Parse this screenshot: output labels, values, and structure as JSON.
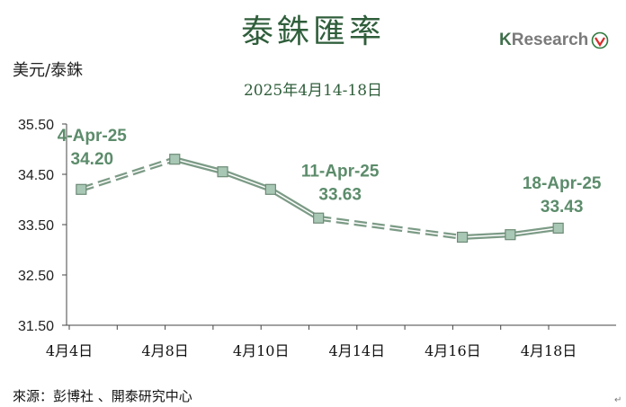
{
  "title": "泰銖匯率",
  "subtitle": "2025年4月14-18日",
  "unit_label": "美元/泰銖",
  "source": "來源：彭博社 、開泰研究中心",
  "logo": {
    "k": "K",
    "text": "Research"
  },
  "colors": {
    "line": "#7c9b86",
    "marker_fill": "#a8c7b4",
    "marker_stroke": "#6d8a76",
    "text_green": "#2f5e3b",
    "annotation": "#5c8c6b"
  },
  "chart_data": {
    "type": "line",
    "title": "泰銖匯率",
    "subtitle": "2025年4月14-18日",
    "ylabel": "美元/泰銖",
    "ylim": [
      31.5,
      35.5
    ],
    "yticks": [
      "31.50",
      "32.50",
      "33.50",
      "34.50",
      "35.50"
    ],
    "xlim_index": [
      0,
      10.7
    ],
    "xticks": [
      {
        "label": "4月4日",
        "index": 0
      },
      {
        "label": "4月8日",
        "index": 2
      },
      {
        "label": "4月10日",
        "index": 4
      },
      {
        "label": "4月14日",
        "index": 6
      },
      {
        "label": "4月16日",
        "index": 8
      },
      {
        "label": "4月18日",
        "index": 10
      }
    ],
    "points": [
      {
        "index": 0.25,
        "value": 34.2
      },
      {
        "index": 2.2,
        "value": 34.8
      },
      {
        "index": 3.2,
        "value": 34.55
      },
      {
        "index": 4.2,
        "value": 34.2
      },
      {
        "index": 5.2,
        "value": 33.63
      },
      {
        "index": 8.2,
        "value": 33.25
      },
      {
        "index": 9.2,
        "value": 33.3
      },
      {
        "index": 10.2,
        "value": 33.43
      }
    ],
    "segments": [
      {
        "from": 0,
        "to": 1,
        "style": "dashed"
      },
      {
        "from": 1,
        "to": 2,
        "style": "solid"
      },
      {
        "from": 2,
        "to": 3,
        "style": "solid"
      },
      {
        "from": 3,
        "to": 4,
        "style": "solid"
      },
      {
        "from": 4,
        "to": 5,
        "style": "dashed"
      },
      {
        "from": 5,
        "to": 6,
        "style": "solid"
      },
      {
        "from": 6,
        "to": 7,
        "style": "solid"
      }
    ],
    "annotations": [
      {
        "point": 0,
        "date": "4-Apr-25",
        "value": "34.20"
      },
      {
        "point": 4,
        "date": "11-Apr-25",
        "value": "33.63"
      },
      {
        "point": 7,
        "date": "18-Apr-25",
        "value": "33.43"
      }
    ],
    "grid": false,
    "legend": "none"
  }
}
